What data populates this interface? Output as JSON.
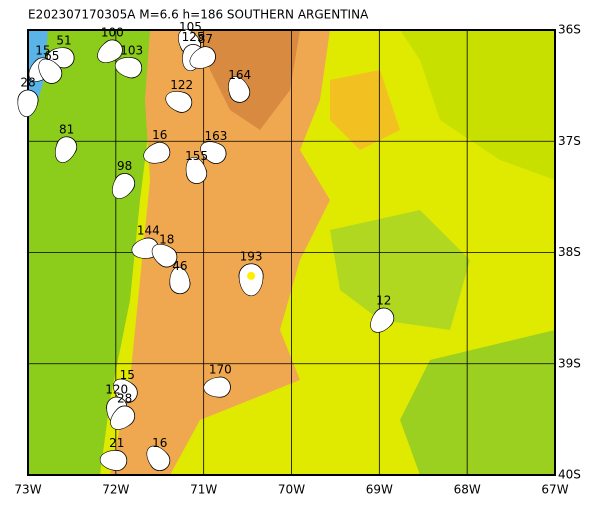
{
  "map": {
    "title": "E202307170305A  M=6.6  h=186  SOUTHERN ARGENTINA",
    "xlim": [
      -73,
      -67
    ],
    "ylim": [
      -40,
      -36
    ],
    "xticks": [
      {
        "value": -73,
        "label": "73W"
      },
      {
        "value": -72,
        "label": "72W"
      },
      {
        "value": -71,
        "label": "71W"
      },
      {
        "value": -70,
        "label": "70W"
      },
      {
        "value": -69,
        "label": "69W"
      },
      {
        "value": -68,
        "label": "68W"
      },
      {
        "value": -67,
        "label": "67W"
      }
    ],
    "yticks": [
      {
        "value": -36,
        "label": "36S"
      },
      {
        "value": -37,
        "label": "37S"
      },
      {
        "value": -38,
        "label": "38S"
      },
      {
        "value": -39,
        "label": "39S"
      },
      {
        "value": -40,
        "label": "40S"
      }
    ],
    "event_color": "#808080",
    "main_color": "#ee1111",
    "events": [
      {
        "depth": "193",
        "lon": -70.46,
        "lat": -38.21,
        "main": true
      },
      {
        "depth": "15",
        "lon": -72.83,
        "lat": -36.34
      },
      {
        "depth": "51",
        "lon": -72.59,
        "lat": -36.25
      },
      {
        "depth": "65",
        "lon": -72.73,
        "lat": -36.39
      },
      {
        "depth": "28",
        "lon": -73.0,
        "lat": -36.63
      },
      {
        "depth": "100",
        "lon": -72.04,
        "lat": -36.18
      },
      {
        "depth": "103",
        "lon": -71.82,
        "lat": -36.34
      },
      {
        "depth": "105",
        "lon": -71.15,
        "lat": -36.13
      },
      {
        "depth": "125",
        "lon": -71.12,
        "lat": -36.22
      },
      {
        "depth": "87",
        "lon": -70.98,
        "lat": -36.24
      },
      {
        "depth": "122",
        "lon": -71.25,
        "lat": -36.65
      },
      {
        "depth": "164",
        "lon": -70.59,
        "lat": -36.56
      },
      {
        "depth": "81",
        "lon": -72.56,
        "lat": -37.05
      },
      {
        "depth": "16",
        "lon": -71.5,
        "lat": -37.1
      },
      {
        "depth": "163",
        "lon": -70.86,
        "lat": -37.11
      },
      {
        "depth": "155",
        "lon": -71.08,
        "lat": -37.29
      },
      {
        "depth": "98",
        "lon": -71.9,
        "lat": -37.38
      },
      {
        "depth": "144",
        "lon": -71.63,
        "lat": -37.96
      },
      {
        "depth": "18",
        "lon": -71.42,
        "lat": -38.04
      },
      {
        "depth": "46",
        "lon": -71.27,
        "lat": -38.28
      },
      {
        "depth": "12",
        "lon": -68.95,
        "lat": -38.59
      },
      {
        "depth": "170",
        "lon": -70.81,
        "lat": -39.21
      },
      {
        "depth": "15",
        "lon": -71.87,
        "lat": -39.26
      },
      {
        "depth": "120",
        "lon": -71.99,
        "lat": -39.39
      },
      {
        "depth": "28",
        "lon": -71.9,
        "lat": -39.47
      },
      {
        "depth": "21",
        "lon": -71.99,
        "lat": -39.87
      },
      {
        "depth": "16",
        "lon": -71.5,
        "lat": -39.87
      }
    ]
  }
}
